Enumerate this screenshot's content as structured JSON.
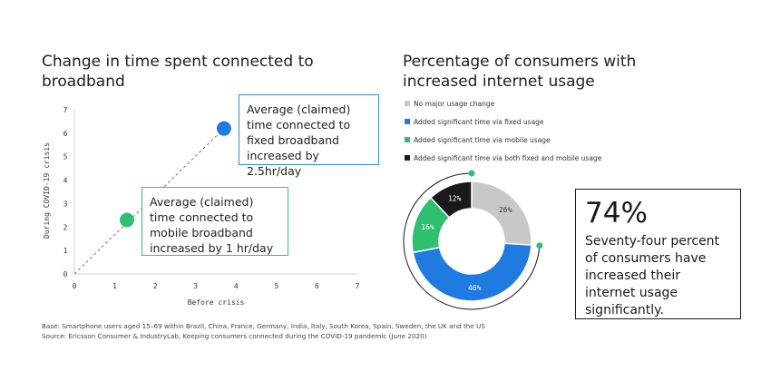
{
  "left_title": "Change in time spent connected to broadband",
  "right_title": "Percentage of consumers with increased internet usage",
  "callouts": {
    "fixed": "Average (claimed) time connected to fixed broadband increased by 2.5hr/day",
    "mobile": "Average (claimed) time connected to mobile broadband increased by 1 hr/day"
  },
  "legend": [
    {
      "label": "No major usage change",
      "color": "#c8c8c8"
    },
    {
      "label": "Added significant time via fixed usage",
      "color": "#1f7be0"
    },
    {
      "label": "Added significant time via mobile usage",
      "color": "#2fbf71"
    },
    {
      "label": "Added significant time via both fixed and mobile usage",
      "color": "#1a1a1a"
    }
  ],
  "stat": {
    "value": "74%",
    "text": "Seventy-four percent of consumers have increased their internet usage significantly."
  },
  "footnotes": {
    "base": "Base: Smartphone users aged 15–69 within Brazil, China, France, Germany, India, Italy, South Korea, Spain, Sweden, the UK and the US",
    "source": "Source: Ericsson Consumer & IndustryLab, Keeping consumers connected during the COVID-19 pandemic (June 2020)"
  },
  "chart_data": [
    {
      "type": "scatter",
      "xlabel": "Before crisis",
      "ylabel": "During COVID-19 crisis",
      "xlim": [
        0,
        7
      ],
      "ylim": [
        0,
        7
      ],
      "xticks": [
        "0",
        "1",
        "2",
        "3",
        "4",
        "5",
        "6",
        "7"
      ],
      "yticks": [
        "0",
        "1",
        "2",
        "3",
        "4",
        "5",
        "6",
        "7"
      ],
      "points": [
        {
          "x": 3.7,
          "y": 6.2,
          "color": "#1f7be0"
        },
        {
          "x": 1.3,
          "y": 2.3,
          "color": "#2fbf71"
        }
      ],
      "reference_line": {
        "from": [
          0,
          0
        ],
        "to": [
          3.7,
          6.2
        ],
        "style": "dashed"
      }
    },
    {
      "type": "pie",
      "style": "donut",
      "slices": [
        {
          "label": "No major usage change",
          "value": 26,
          "color": "#c8c8c8",
          "text": "26%"
        },
        {
          "label": "Added significant time via fixed usage",
          "value": 46,
          "color": "#1f7be0",
          "text": "46%"
        },
        {
          "label": "Added significant time via mobile usage",
          "value": 16,
          "color": "#2fbf71",
          "text": "16%"
        },
        {
          "label": "Added significant time via both fixed and mobile usage",
          "value": 12,
          "color": "#1a1a1a",
          "text": "12%"
        }
      ],
      "outer_arc_highlight": 74,
      "outer_arc_color": "#2fbf71"
    }
  ]
}
